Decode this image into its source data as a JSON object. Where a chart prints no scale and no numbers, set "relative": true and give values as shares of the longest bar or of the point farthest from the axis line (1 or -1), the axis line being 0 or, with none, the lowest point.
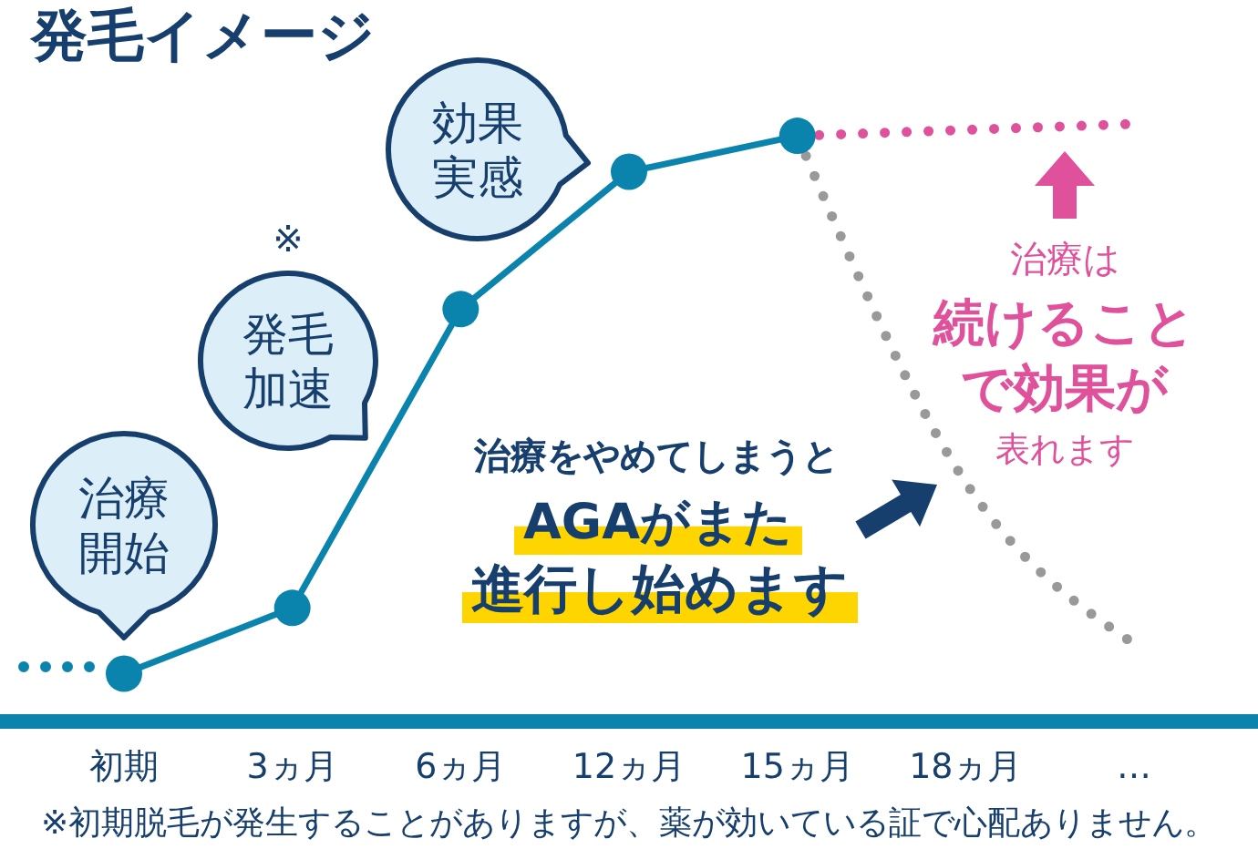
{
  "chart_data": {
    "type": "line",
    "title": "発毛イメージ",
    "relative": true,
    "categories": [
      "初期",
      "3ヵ月",
      "6ヵ月",
      "12ヵ月",
      "15ヵ月",
      "18ヵ月",
      "…"
    ],
    "series": [
      {
        "color": "#0b84ad",
        "values": [
          0.08,
          0.19,
          0.69,
          0.92,
          0.98,
          null,
          null
        ],
        "line_style": "solid",
        "marker": "circle"
      },
      {
        "color": "#e0519c",
        "values": [
          null,
          null,
          null,
          null,
          0.98,
          0.99,
          1.0
        ],
        "line_style": "dotted",
        "marker": "none"
      },
      {
        "color": "#999999",
        "values": [
          null,
          null,
          null,
          null,
          0.98,
          0.4,
          0.13
        ],
        "line_style": "dotted",
        "marker": "none"
      }
    ],
    "annotations": [
      "治療開始",
      "※",
      "発毛加速",
      "効果実感",
      "治療をやめてしまうと",
      "AGAがまた",
      "進行し始めます",
      "治療は",
      "続けること",
      "で効果が",
      "表れます",
      "※初期脱毛が発生することがありますが、薬が効いている証で心配ありません。"
    ]
  }
}
